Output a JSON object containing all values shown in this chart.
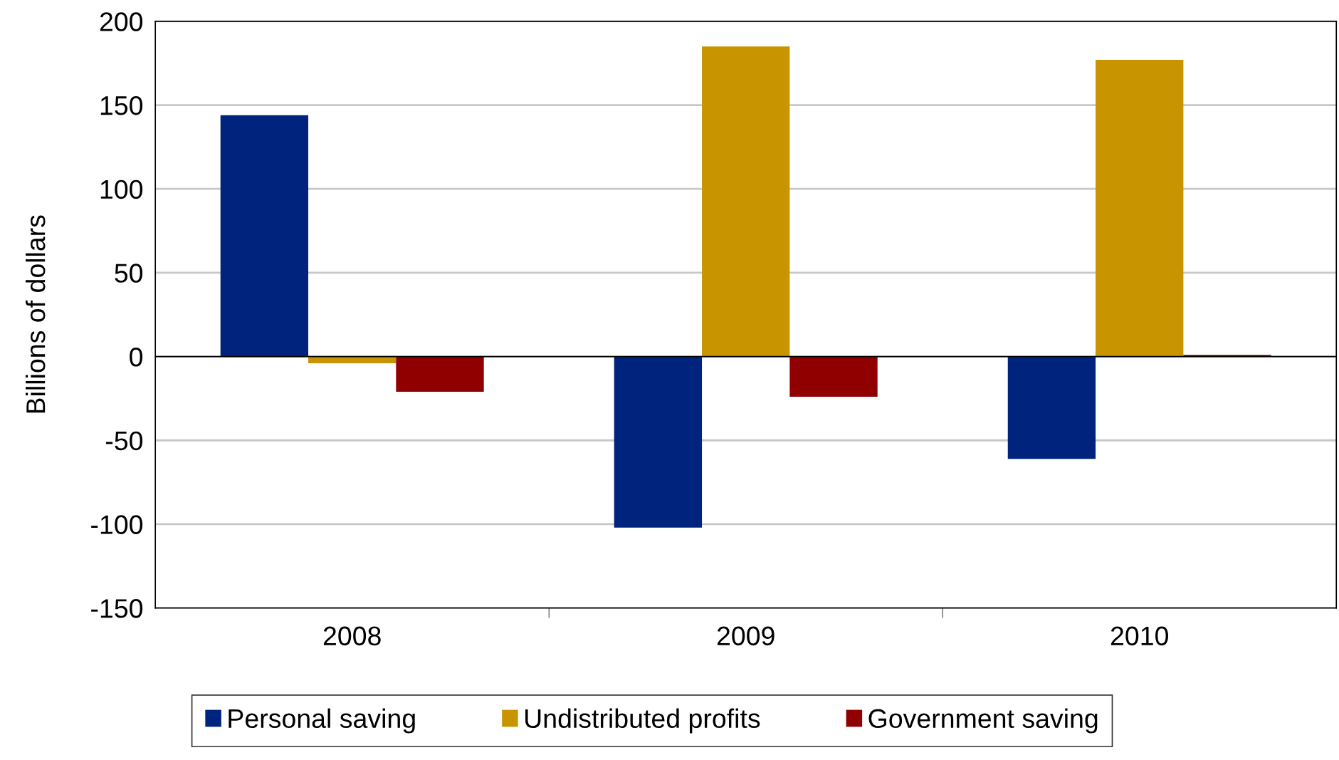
{
  "chart_data": {
    "type": "bar",
    "ylabel": "Billions of dollars",
    "categories": [
      "2008",
      "2009",
      "2010"
    ],
    "series": [
      {
        "name": "Personal saving",
        "color": "#00247d",
        "values": [
          144,
          -102,
          -61
        ]
      },
      {
        "name": "Undistributed profits",
        "color": "#c89400",
        "values": [
          -4,
          185,
          177
        ]
      },
      {
        "name": "Government saving",
        "color": "#910000",
        "values": [
          -21,
          -24,
          1
        ]
      }
    ],
    "ylim": [
      -150,
      200
    ],
    "yticks": [
      -150,
      -100,
      -50,
      0,
      50,
      100,
      150,
      200
    ],
    "grid": "y",
    "legend": "bottom"
  }
}
